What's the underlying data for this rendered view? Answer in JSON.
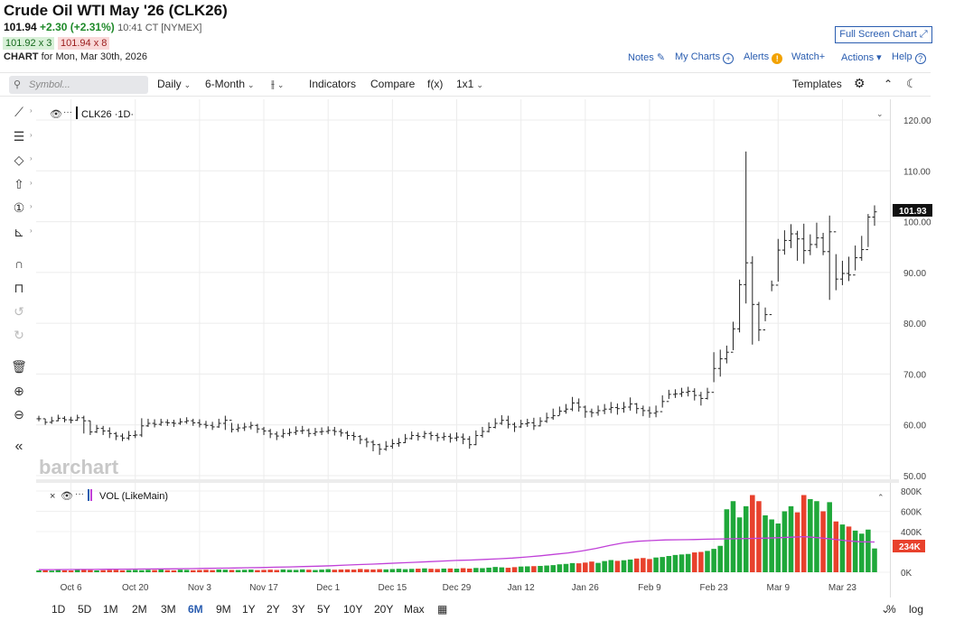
{
  "header": {
    "title": "Crude Oil WTI May '26 (CLK26)",
    "last": "101.94",
    "change": "+2.30 (+2.31%)",
    "time": "10:41 CT [NYMEX]",
    "bid": "101.92 x 3",
    "ask": "101.94 x 8",
    "chart_label": "CHART",
    "chart_date": "for Mon, Mar 30th, 2026"
  },
  "top_links": {
    "fullscreen": "Full Screen Chart",
    "notes": "Notes",
    "my_charts": "My Charts",
    "alerts": "Alerts",
    "watch": "Watch",
    "actions": "Actions",
    "help": "Help"
  },
  "toolbar": {
    "symbol_placeholder": "Symbol...",
    "interval": "Daily",
    "period": "6-Month",
    "indicators": "Indicators",
    "compare": "Compare",
    "fx": "f(x)",
    "layout": "1x1",
    "templates": "Templates"
  },
  "price_pane": {
    "legend": "CLK26 ·1D·",
    "watermark": "barchart",
    "current_price_tag": "101.93"
  },
  "volume_pane": {
    "legend": "VOL (LikeMain)",
    "current_volume_tag": "234K"
  },
  "range_buttons": [
    "1D",
    "5D",
    "1M",
    "2M",
    "3M",
    "6M",
    "9M",
    "1Y",
    "2Y",
    "3Y",
    "5Y",
    "10Y",
    "20Y",
    "Max"
  ],
  "range_active": "6M",
  "bottom_right": {
    "percent": "%",
    "log": "log"
  },
  "colors": {
    "up": "#1fa83a",
    "down": "#e8412c",
    "accent": "#2a5db0",
    "ma": "#c040d8"
  },
  "chart_data": {
    "type": "ohlc",
    "title": "Crude Oil WTI May '26 (CLK26)",
    "y_ticks": [
      "120.00",
      "110.00",
      "100.00",
      "90.00",
      "80.00",
      "70.00",
      "60.00",
      "50.00"
    ],
    "ylim": [
      50,
      120
    ],
    "x_ticks": [
      "Oct 6",
      "Oct 20",
      "Nov 3",
      "Nov 17",
      "Dec 1",
      "Dec 15",
      "Dec 29",
      "Jan 12",
      "Jan 26",
      "Feb 9",
      "Feb 23",
      "Mar 9",
      "Mar 23"
    ],
    "close": [
      61.2,
      60.5,
      60.8,
      61.3,
      61.0,
      60.9,
      61.4,
      60.8,
      58.6,
      59.3,
      58.8,
      58.3,
      57.8,
      57.4,
      57.9,
      58.0,
      59.8,
      60.3,
      60.1,
      60.5,
      60.4,
      60.3,
      60.6,
      60.8,
      60.4,
      60.1,
      59.9,
      59.6,
      60.3,
      60.9,
      59.1,
      59.4,
      59.6,
      59.9,
      59.2,
      58.8,
      58.2,
      57.8,
      58.3,
      58.5,
      58.8,
      58.9,
      58.3,
      58.6,
      58.7,
      58.9,
      58.7,
      58.4,
      57.9,
      57.7,
      57.1,
      56.6,
      56.1,
      55.2,
      55.8,
      56.3,
      56.5,
      57.3,
      57.9,
      57.7,
      58.3,
      57.9,
      57.5,
      57.7,
      57.4,
      57.6,
      57.2,
      56.1,
      57.9,
      58.7,
      59.5,
      60.3,
      60.9,
      60.1,
      59.6,
      60.2,
      60.4,
      59.8,
      60.7,
      61.4,
      61.8,
      62.7,
      63.1,
      64.3,
      63.5,
      62.6,
      62.4,
      62.8,
      63.1,
      63.4,
      63.2,
      63.5,
      64.1,
      63.2,
      62.8,
      62.3,
      62.6,
      64.6,
      66.0,
      66.1,
      66.4,
      66.6,
      65.8,
      65.2,
      66.4,
      71.1,
      73.0,
      74.3,
      78.9,
      87.6,
      91.9,
      83.7,
      78.7,
      81.7,
      87.5,
      94.4,
      96.3,
      97.6,
      96.6,
      94.3,
      95.5,
      96.8,
      94.1,
      98.0,
      88.7,
      89.8,
      89.5,
      92.9,
      94.5,
      100.9,
      101.93
    ],
    "high": [
      61.8,
      61.2,
      61.6,
      62.0,
      61.7,
      61.6,
      62.0,
      61.8,
      60.8,
      60.0,
      59.8,
      59.5,
      58.6,
      58.3,
      58.8,
      58.9,
      61.3,
      61.2,
      61.1,
      61.2,
      61.1,
      61.0,
      61.3,
      61.5,
      61.2,
      61.1,
      60.8,
      60.6,
      61.2,
      61.8,
      60.4,
      60.2,
      60.4,
      60.6,
      60.2,
      59.6,
      59.2,
      58.7,
      59.2,
      59.3,
      59.7,
      59.8,
      59.3,
      59.4,
      59.5,
      59.7,
      59.6,
      59.2,
      58.8,
      58.6,
      58.0,
      57.5,
      57.0,
      56.3,
      56.8,
      57.2,
      57.4,
      58.2,
      58.7,
      58.5,
      58.8,
      58.7,
      58.4,
      58.5,
      58.3,
      58.5,
      58.3,
      57.8,
      58.9,
      59.6,
      60.5,
      61.3,
      61.9,
      61.8,
      60.5,
      61.0,
      61.2,
      61.4,
      61.5,
      62.4,
      63.2,
      63.6,
      64.1,
      65.5,
      65.2,
      63.8,
      63.2,
      63.8,
      64.1,
      64.5,
      64.2,
      64.5,
      65.4,
      64.3,
      63.8,
      63.6,
      63.8,
      65.8,
      66.9,
      67.0,
      67.3,
      67.5,
      67.2,
      66.5,
      67.3,
      74.3,
      74.8,
      75.6,
      80.3,
      88.6,
      113.8,
      93.2,
      84.2,
      83.1,
      88.4,
      96.6,
      98.3,
      99.5,
      98.2,
      99.6,
      97.5,
      99.8,
      97.8,
      101.2,
      93.6,
      92.3,
      93.1,
      95.3,
      97.2,
      101.5,
      103.2
    ],
    "low": [
      60.7,
      60.0,
      60.2,
      60.7,
      60.5,
      60.3,
      60.8,
      58.3,
      58.0,
      58.4,
      58.0,
      57.4,
      57.0,
      56.8,
      57.0,
      57.4,
      57.6,
      59.6,
      59.5,
      59.8,
      59.8,
      59.6,
      60.0,
      60.2,
      59.8,
      59.5,
      59.3,
      59.0,
      59.4,
      59.0,
      58.5,
      58.6,
      58.8,
      59.1,
      58.4,
      58.0,
      57.4,
      57.0,
      57.4,
      57.8,
      58.0,
      58.2,
      57.6,
      57.8,
      58.0,
      58.2,
      57.9,
      57.7,
      57.1,
      56.9,
      56.2,
      55.6,
      54.8,
      54.1,
      54.9,
      55.3,
      55.7,
      56.4,
      57.1,
      56.9,
      57.3,
      57.0,
      56.7,
      56.9,
      56.5,
      56.8,
      56.2,
      55.3,
      56.0,
      57.5,
      58.5,
      59.3,
      60.0,
      59.3,
      58.6,
      59.4,
      59.6,
      59.0,
      59.7,
      60.4,
      61.0,
      61.9,
      62.2,
      62.7,
      62.6,
      61.4,
      61.5,
      61.8,
      62.1,
      62.3,
      62.0,
      62.4,
      62.8,
      62.2,
      61.7,
      61.4,
      61.5,
      63.4,
      65.1,
      65.3,
      65.5,
      65.6,
      64.8,
      63.8,
      65.0,
      68.4,
      69.5,
      72.1,
      74.7,
      78.2,
      83.9,
      75.8,
      76.5,
      80.4,
      86.3,
      88.2,
      93.5,
      94.8,
      92.3,
      91.7,
      93.4,
      94.8,
      93.4,
      84.6,
      86.5,
      87.5,
      88.3,
      90.4,
      92.3,
      95.0,
      99.2
    ],
    "volume_scale_labels": [
      "800K",
      "600K",
      "400K",
      "0K"
    ],
    "volume_k": [
      18,
      20,
      16,
      22,
      19,
      17,
      23,
      25,
      21,
      18,
      20,
      22,
      24,
      19,
      21,
      23,
      20,
      24,
      22,
      26,
      21,
      19,
      25,
      23,
      20,
      22,
      24,
      21,
      27,
      25,
      23,
      22,
      24,
      26,
      21,
      23,
      25,
      22,
      27,
      24,
      23,
      28,
      25,
      22,
      26,
      30,
      25,
      27,
      28,
      26,
      32,
      29,
      27,
      30,
      28,
      31,
      34,
      30,
      33,
      35,
      38,
      34,
      32,
      36,
      37,
      35,
      40,
      36,
      42,
      40,
      45,
      52,
      48,
      44,
      50,
      56,
      58,
      60,
      62,
      66,
      70,
      78,
      82,
      90,
      88,
      95,
      105,
      92,
      110,
      120,
      112,
      118,
      125,
      135,
      140,
      130,
      145,
      150,
      160,
      170,
      175,
      180,
      195,
      200,
      210,
      230,
      260,
      620,
      700,
      540,
      650,
      760,
      700,
      560,
      520,
      480,
      600,
      650,
      590,
      760,
      720,
      700,
      600,
      690,
      500,
      470,
      450,
      410,
      380,
      420,
      234
    ],
    "ma_k": [
      25,
      26,
      27,
      28,
      28,
      29,
      30,
      31,
      32,
      33,
      34,
      36,
      38,
      40,
      42,
      44,
      46,
      50,
      52,
      56,
      60,
      64,
      70,
      76,
      80,
      86,
      92,
      98,
      104,
      110,
      116,
      120,
      126,
      132,
      140,
      150,
      162,
      176,
      190,
      210,
      235,
      265,
      290,
      305,
      312,
      318,
      320,
      322,
      325,
      328,
      330,
      332,
      335,
      340,
      345,
      350,
      340,
      325,
      310,
      300,
      298
    ]
  }
}
